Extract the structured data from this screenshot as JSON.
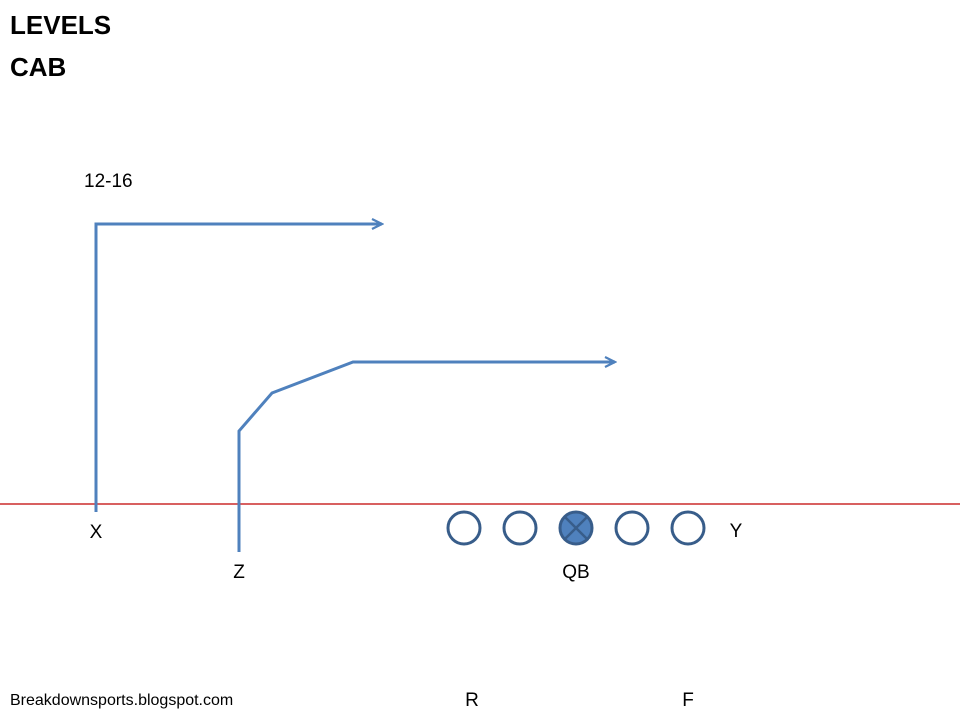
{
  "titles": {
    "line1": "LEVELS",
    "line2": "CAB"
  },
  "depth_label": "12-16",
  "players": {
    "x": "X",
    "z": "Z",
    "qb": "QB",
    "y": "Y",
    "r": "R",
    "f": "F"
  },
  "credit": "Breakdownsports.blogspot.com",
  "colors": {
    "route": "#4F81BD",
    "line_of_scrimmage": "#C00000",
    "lineman_stroke": "#385D8A",
    "center_fill": "#4F81BD"
  }
}
